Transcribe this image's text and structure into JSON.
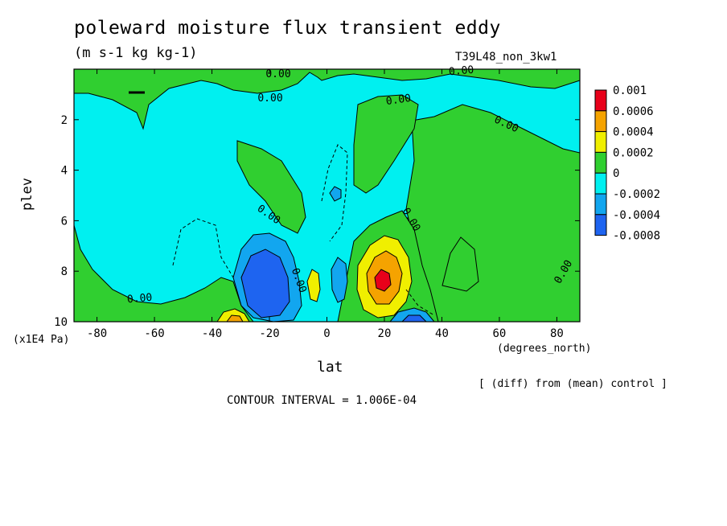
{
  "chart_data": {
    "type": "heatmap",
    "title": "poleward moisture flux transient eddy",
    "units": "(m s-1 kg kg-1)",
    "run_label": "T39L48_non_3kw1",
    "xlabel": "lat",
    "x_unit": "(degrees_north)",
    "ylabel": "plev",
    "y_unit": "(x1E4 Pa)",
    "xlim": [
      -88,
      88
    ],
    "ylim": [
      10,
      0
    ],
    "x_ticks": [
      "-80",
      "-60",
      "-40",
      "-20",
      "0",
      "20",
      "40",
      "60",
      "80"
    ],
    "x_tick_values": [
      -80,
      -60,
      -40,
      -20,
      0,
      20,
      40,
      60,
      80
    ],
    "y_ticks": [
      "2",
      "4",
      "6",
      "8",
      "10"
    ],
    "y_tick_values": [
      2,
      4,
      6,
      8,
      10
    ],
    "colorbar": {
      "labels": [
        "0.001",
        "0.0006",
        "0.0004",
        "0.0002",
        "0",
        "-0.0002",
        "-0.0004",
        "-0.0008"
      ],
      "colors": [
        "#e8001a",
        "#f5a300",
        "#f0ef00",
        "#30cf30",
        "#00f0f0",
        "#12a6ef",
        "#1e64f0"
      ]
    },
    "contour_labels": [
      "0.00",
      "0.00",
      "0.00",
      "0.00",
      "0.00",
      "0.00",
      "0.00",
      "0.00",
      "0.00",
      "0.00"
    ],
    "note": "[ (diff) from (mean) control ]",
    "contour_interval": "CONTOUR INTERVAL = 1.006E-04"
  }
}
